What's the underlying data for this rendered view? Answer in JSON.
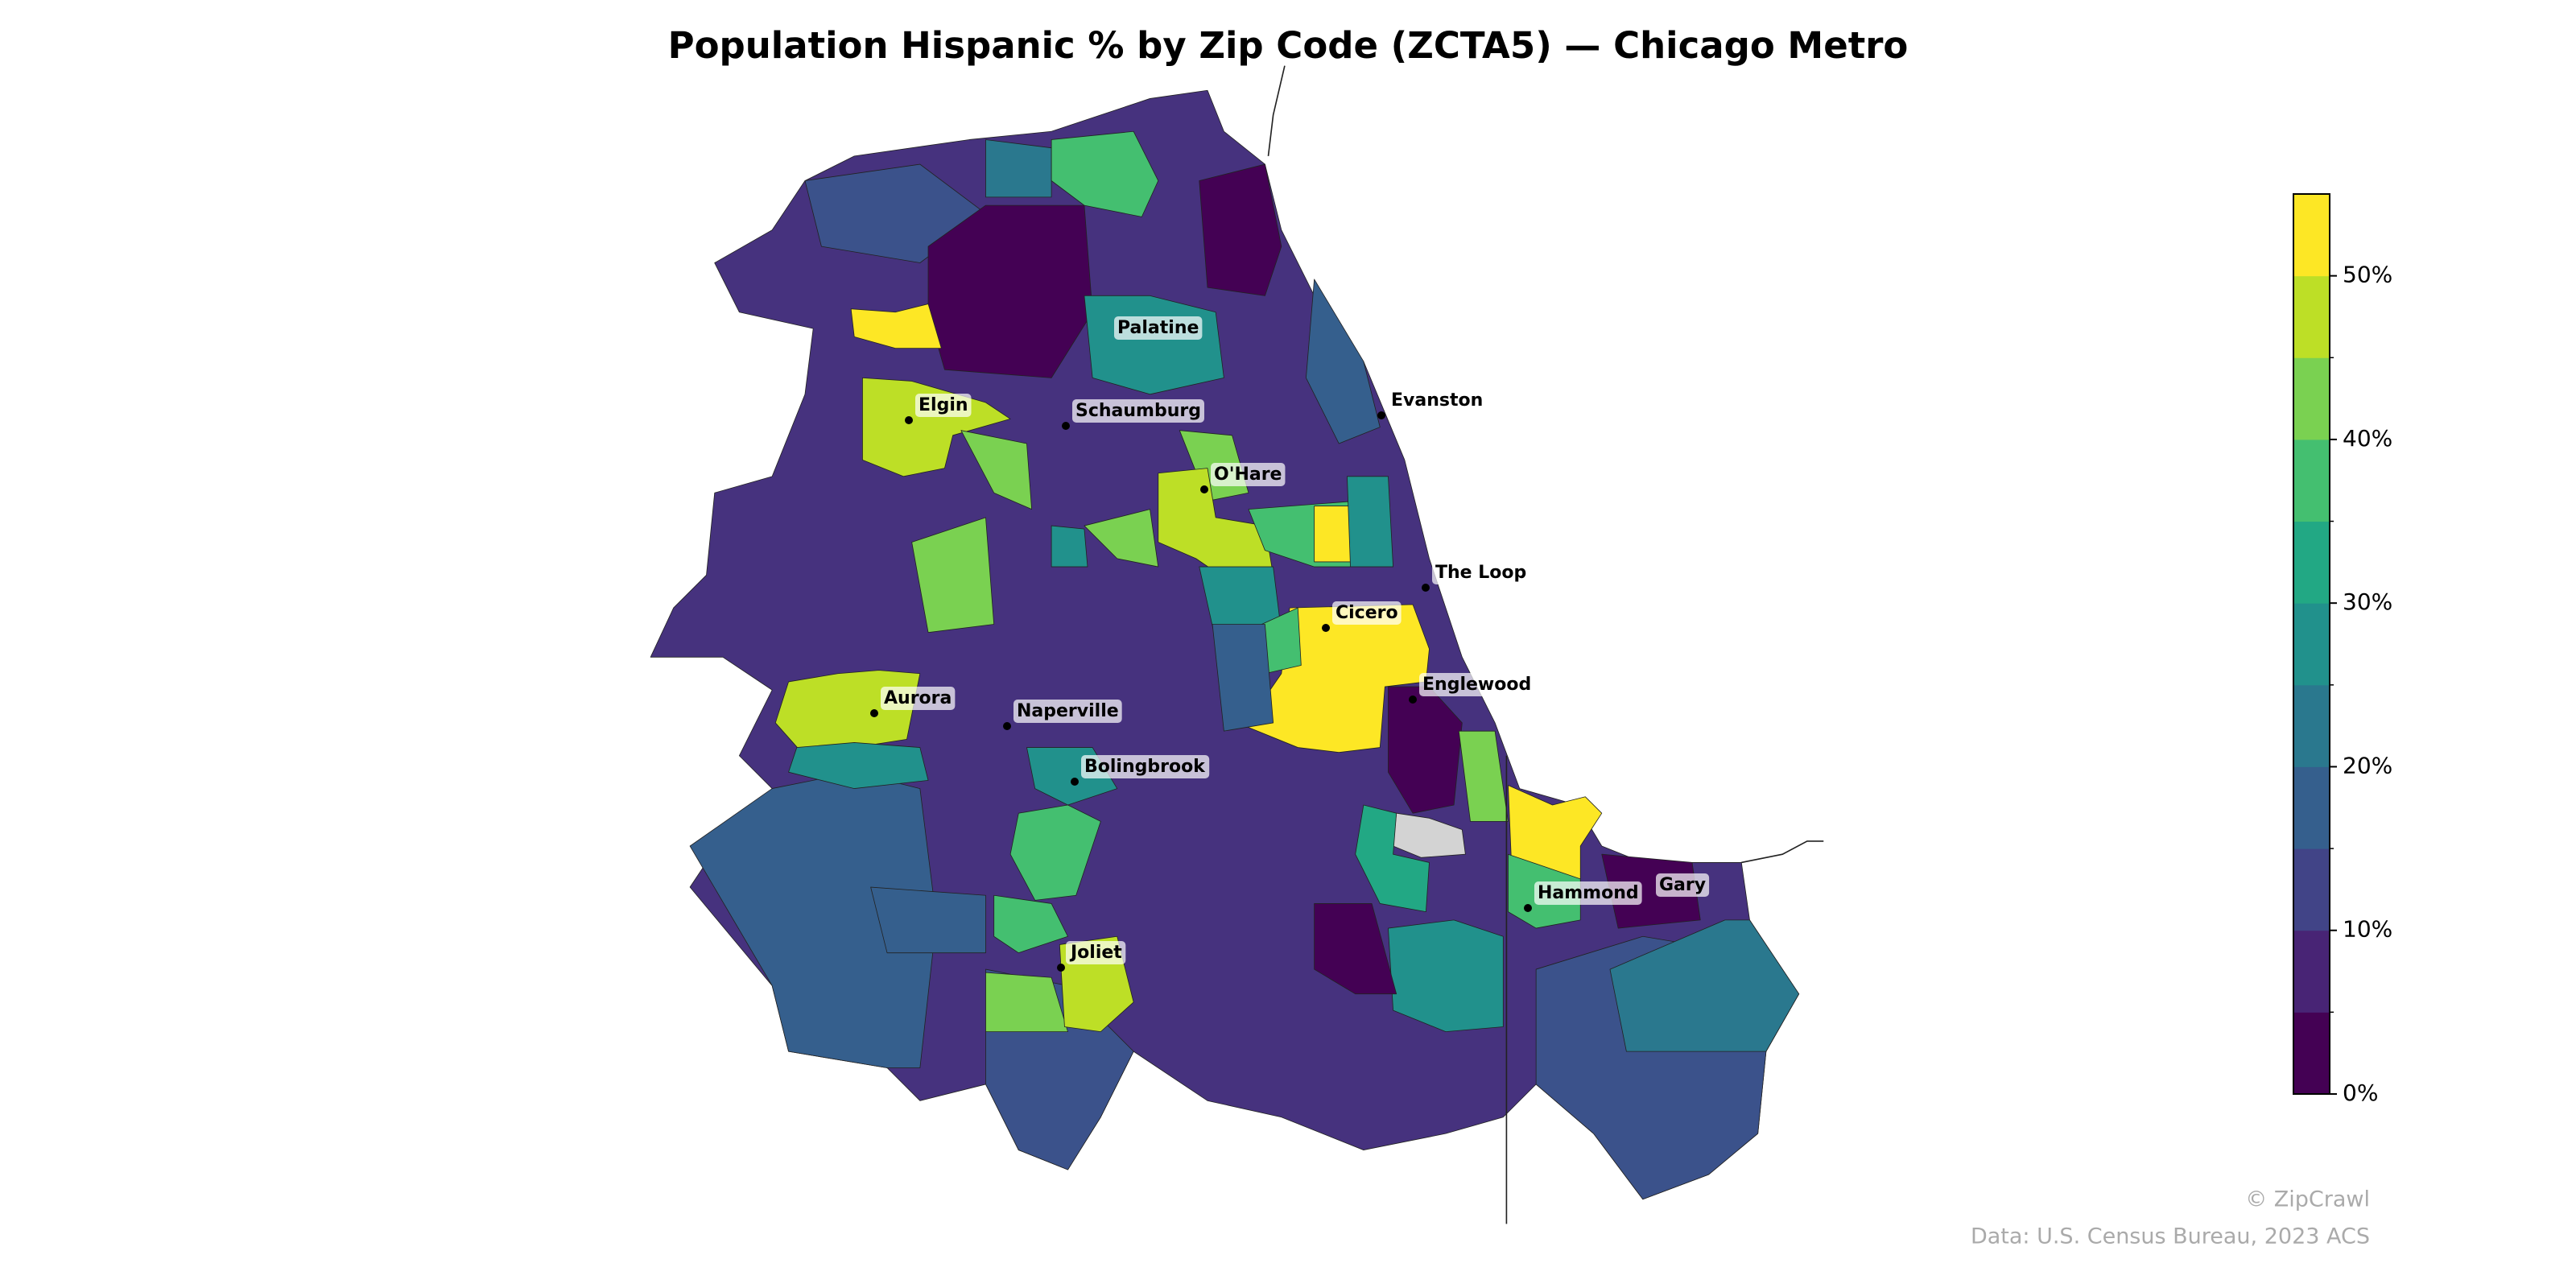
{
  "title": "Population Hispanic % by Zip Code (ZCTA5) — Chicago Metro",
  "places": [
    "Palatine",
    "Elgin",
    "Schaumburg",
    "Evanston",
    "O'Hare",
    "The Loop",
    "Cicero",
    "Englewood",
    "Aurora",
    "Naperville",
    "Bolingbrook",
    "Hammond",
    "Gary",
    "Joliet"
  ],
  "colorbar": {
    "lim": [
      0,
      55
    ],
    "ticks": [
      {
        "value": 0,
        "label": "0%"
      },
      {
        "value": 10,
        "label": "10%"
      },
      {
        "value": 20,
        "label": "20%"
      },
      {
        "value": 30,
        "label": "30%"
      },
      {
        "value": 40,
        "label": "40%"
      },
      {
        "value": 50,
        "label": "50%"
      }
    ],
    "colors": [
      "#440154",
      "#482475",
      "#414487",
      "#355f8d",
      "#2a788e",
      "#21918c",
      "#22a884",
      "#44bf70",
      "#7ad151",
      "#bddf26",
      "#fde725"
    ]
  },
  "credits": [
    "© ZipCrawl",
    "Data: U.S. Census Bureau, 2023 ACS"
  ]
}
